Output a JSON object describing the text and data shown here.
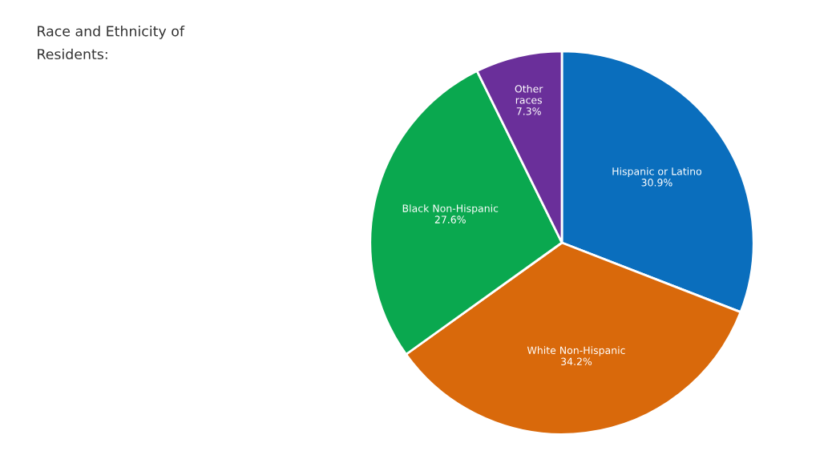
{
  "chart_data": {
    "type": "pie",
    "title": "Race and Ethnicity of Residents:",
    "categories": [
      "Hispanic or Latino",
      "White Non-Hispanic",
      "Black Non-Hispanic",
      "Other races"
    ],
    "values": [
      30.9,
      34.2,
      27.6,
      7.3
    ],
    "colors": [
      "#0a6ebd",
      "#d9690b",
      "#0aa84f",
      "#6a2f9a"
    ],
    "value_labels": [
      "30.9%",
      "34.2%",
      "27.6%",
      "7.3%"
    ],
    "legend": false
  }
}
